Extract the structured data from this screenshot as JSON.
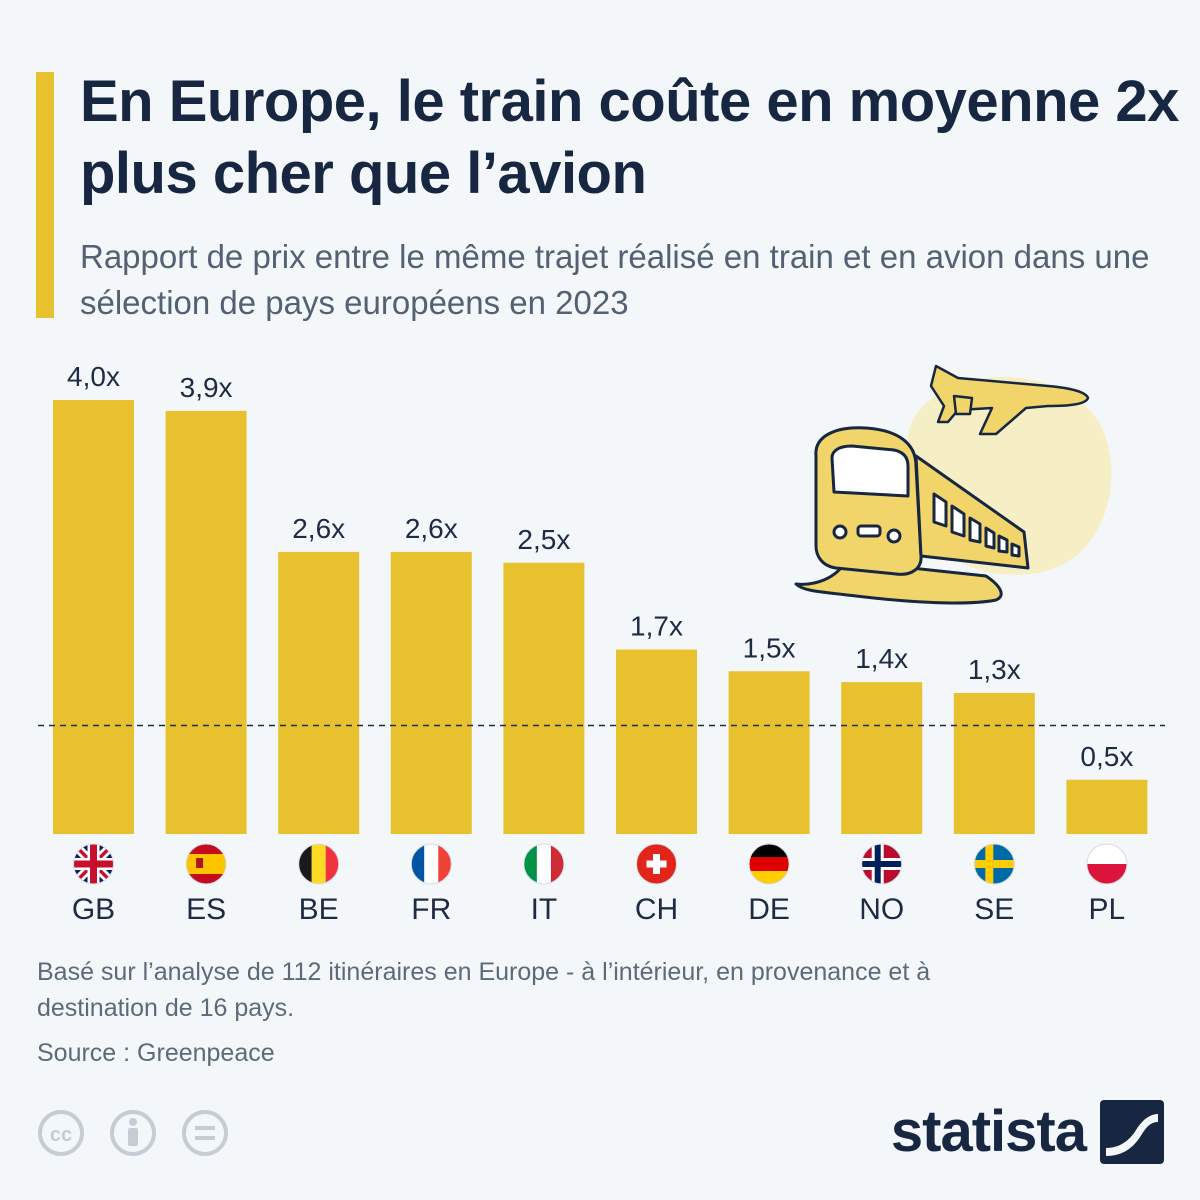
{
  "title": "En Europe, le train coûte en moyenne 2x plus cher que l’avion",
  "subtitle": "Rapport de prix entre le même trajet réalisé en train et en avion dans une sélection de pays européens en 2023",
  "chart_data": {
    "type": "bar",
    "categories": [
      "GB",
      "ES",
      "BE",
      "FR",
      "IT",
      "CH",
      "DE",
      "NO",
      "SE",
      "PL"
    ],
    "values": [
      4.0,
      3.9,
      2.6,
      2.6,
      2.5,
      1.7,
      1.5,
      1.4,
      1.3,
      0.5
    ],
    "value_labels": [
      "4,0x",
      "3,9x",
      "2,6x",
      "2,6x",
      "2,5x",
      "1,7x",
      "1,5x",
      "1,4x",
      "1,3x",
      "0,5x"
    ],
    "reference_line": 1.0,
    "ylim": [
      0,
      4.0
    ],
    "bar_color": "#e8c22e",
    "flag_icons": [
      "flag-gb-icon",
      "flag-es-icon",
      "flag-be-icon",
      "flag-fr-icon",
      "flag-it-icon",
      "flag-ch-icon",
      "flag-de-icon",
      "flag-no-icon",
      "flag-se-icon",
      "flag-pl-icon"
    ]
  },
  "footnote": "Basé sur l’analyse de 112 itinéraires en Europe - à l’intérieur, en provenance et à destination de 16 pays.",
  "source": "Source : Greenpeace",
  "brand": "statista",
  "colors": {
    "accent": "#e8c22e",
    "title": "#172742",
    "subtitle": "#526173"
  }
}
